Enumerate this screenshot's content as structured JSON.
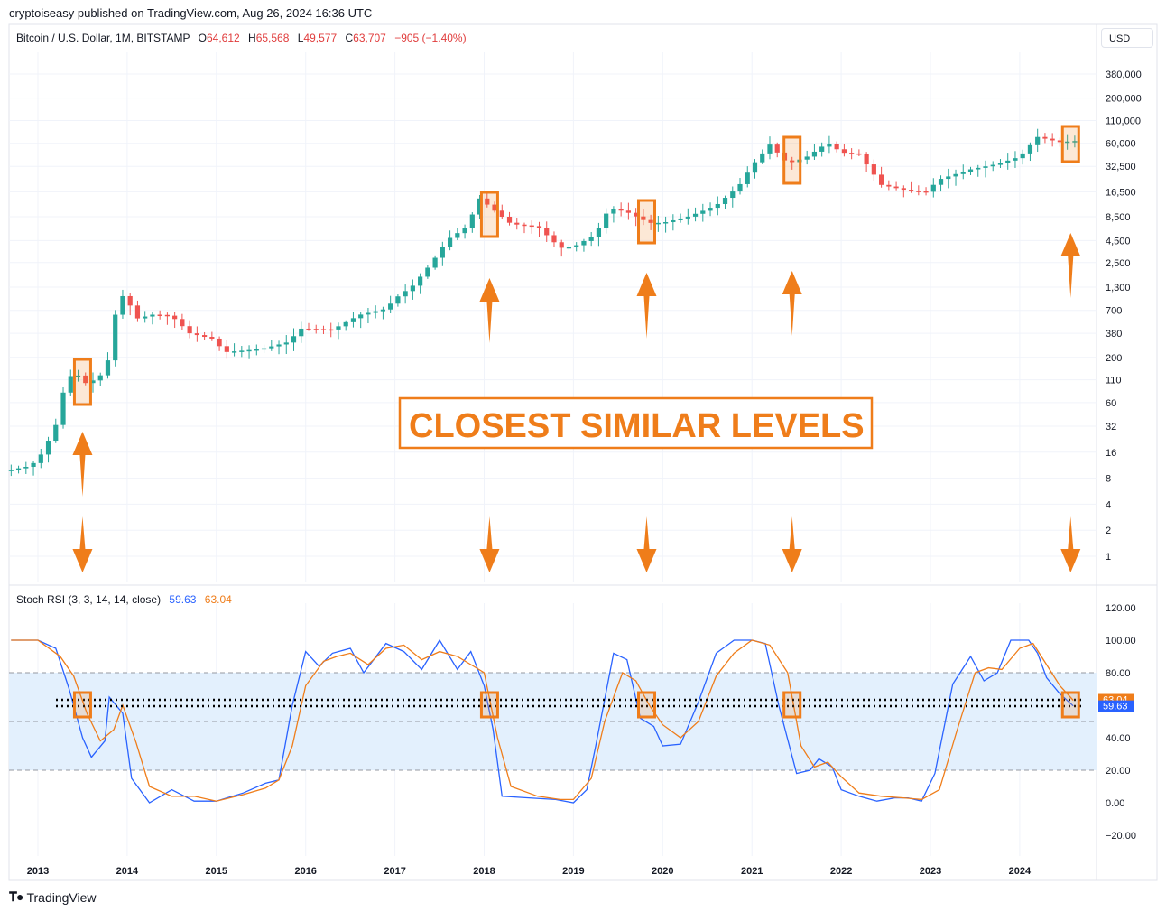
{
  "header": {
    "published": "cryptoiseasy published on TradingView.com, Aug 26, 2024 16:36 UTC",
    "symbol": "Bitcoin / U.S. Dollar, 1M, BITSTAMP",
    "open_label": "O",
    "open": "64,612",
    "high_label": "H",
    "high": "65,568",
    "low_label": "L",
    "low": "49,577",
    "close_label": "C",
    "close": "63,707",
    "change": "−905 (−1.40%)",
    "currency": "USD"
  },
  "annotation": {
    "text": "CLOSEST SIMILAR LEVELS"
  },
  "rsi_legend": {
    "name": "Stoch RSI (3, 3, 14, 14, close)",
    "k": "59.63",
    "d": "63.04"
  },
  "footer": {
    "brand": "TradingView"
  },
  "colors": {
    "up": "#26a69a",
    "down": "#ef5350",
    "k_line": "#2962ff",
    "d_line": "#ef7d1a",
    "annotation": "#ef7d1a",
    "band": "#e3f0fd"
  },
  "chart_data": [
    {
      "type": "candlestick",
      "title": "Bitcoin / U.S. Dollar, 1M, BITSTAMP",
      "y_scale": "log",
      "y_ticks": [
        "1",
        "2",
        "4",
        "8",
        "16",
        "32",
        "60",
        "110",
        "200",
        "380",
        "700",
        "1,300",
        "2,500",
        "4,500",
        "8,500",
        "16,500",
        "32,500",
        "60,000",
        "110,000",
        "200,000",
        "380,000"
      ],
      "x_ticks": [
        "2013",
        "2014",
        "2015",
        "2016",
        "2017",
        "2018",
        "2019",
        "2020",
        "2021",
        "2022",
        "2023",
        "2024"
      ],
      "anchors": [
        {
          "date": "2012.7",
          "price": 10
        },
        {
          "date": "2012.9",
          "price": 11
        },
        {
          "date": "2013.0",
          "price": 13
        },
        {
          "date": "2013.1",
          "price": 20
        },
        {
          "date": "2013.2",
          "price": 33
        },
        {
          "date": "2013.3",
          "price": 93
        },
        {
          "date": "2013.4",
          "price": 139
        },
        {
          "date": "2013.55",
          "price": 97
        },
        {
          "date": "2013.7",
          "price": 124
        },
        {
          "date": "2013.8",
          "price": 200
        },
        {
          "date": "2013.9",
          "price": 1100
        },
        {
          "date": "2014.0",
          "price": 950
        },
        {
          "date": "2014.1",
          "price": 560
        },
        {
          "date": "2014.3",
          "price": 630
        },
        {
          "date": "2014.5",
          "price": 600
        },
        {
          "date": "2014.7",
          "price": 380
        },
        {
          "date": "2014.95",
          "price": 330
        },
        {
          "date": "2015.1",
          "price": 230
        },
        {
          "date": "2015.5",
          "price": 250
        },
        {
          "date": "2015.8",
          "price": 300
        },
        {
          "date": "2015.95",
          "price": 430
        },
        {
          "date": "2016.3",
          "price": 420
        },
        {
          "date": "2016.6",
          "price": 620
        },
        {
          "date": "2016.9",
          "price": 730
        },
        {
          "date": "2017.0",
          "price": 960
        },
        {
          "date": "2017.2",
          "price": 1350
        },
        {
          "date": "2017.4",
          "price": 2400
        },
        {
          "date": "2017.6",
          "price": 4700
        },
        {
          "date": "2017.8",
          "price": 6400
        },
        {
          "date": "2017.95",
          "price": 13800
        },
        {
          "date": "2018.1",
          "price": 10300
        },
        {
          "date": "2018.3",
          "price": 7000
        },
        {
          "date": "2018.6",
          "price": 6500
        },
        {
          "date": "2018.85",
          "price": 3700
        },
        {
          "date": "2019.0",
          "price": 3800
        },
        {
          "date": "2019.25",
          "price": 5300
        },
        {
          "date": "2019.4",
          "price": 10800
        },
        {
          "date": "2019.6",
          "price": 9600
        },
        {
          "date": "2019.85",
          "price": 7200
        },
        {
          "date": "2020.0",
          "price": 7200
        },
        {
          "date": "2020.3",
          "price": 8600
        },
        {
          "date": "2020.6",
          "price": 11500
        },
        {
          "date": "2020.85",
          "price": 19000
        },
        {
          "date": "2021.0",
          "price": 33000
        },
        {
          "date": "2021.2",
          "price": 58000
        },
        {
          "date": "2021.4",
          "price": 35000
        },
        {
          "date": "2021.6",
          "price": 41000
        },
        {
          "date": "2021.85",
          "price": 61000
        },
        {
          "date": "2022.0",
          "price": 47000
        },
        {
          "date": "2022.2",
          "price": 45000
        },
        {
          "date": "2022.45",
          "price": 19800
        },
        {
          "date": "2022.75",
          "price": 17000
        },
        {
          "date": "2022.95",
          "price": 16500
        },
        {
          "date": "2023.1",
          "price": 23000
        },
        {
          "date": "2023.45",
          "price": 30000
        },
        {
          "date": "2023.75",
          "price": 34600
        },
        {
          "date": "2024.0",
          "price": 42000
        },
        {
          "date": "2024.2",
          "price": 71000
        },
        {
          "date": "2024.45",
          "price": 62000
        },
        {
          "date": "2024.6",
          "price": 63707
        }
      ]
    },
    {
      "type": "line",
      "title": "Stoch RSI (3, 3, 14, 14, close)",
      "ylim": [
        -20,
        120
      ],
      "y_ticks": [
        "120.00",
        "100.00",
        "80.00",
        "40.00",
        "20.00",
        "0.00",
        "−20.00"
      ],
      "band": [
        20,
        80
      ],
      "midline": 50,
      "series": [
        {
          "name": "K",
          "points": [
            [
              2012.7,
              100
            ],
            [
              2013.0,
              100
            ],
            [
              2013.2,
              95
            ],
            [
              2013.35,
              70
            ],
            [
              2013.5,
              40
            ],
            [
              2013.6,
              28
            ],
            [
              2013.75,
              38
            ],
            [
              2013.8,
              65
            ],
            [
              2013.95,
              55
            ],
            [
              2014.05,
              15
            ],
            [
              2014.25,
              0
            ],
            [
              2014.5,
              8
            ],
            [
              2014.75,
              1
            ],
            [
              2015.0,
              1
            ],
            [
              2015.3,
              6
            ],
            [
              2015.55,
              12
            ],
            [
              2015.7,
              14
            ],
            [
              2015.85,
              60
            ],
            [
              2016.0,
              93
            ],
            [
              2016.15,
              84
            ],
            [
              2016.3,
              92
            ],
            [
              2016.5,
              95
            ],
            [
              2016.65,
              80
            ],
            [
              2016.9,
              98
            ],
            [
              2017.1,
              93
            ],
            [
              2017.3,
              82
            ],
            [
              2017.5,
              100
            ],
            [
              2017.7,
              82
            ],
            [
              2017.85,
              93
            ],
            [
              2018.0,
              72
            ],
            [
              2018.1,
              45
            ],
            [
              2018.2,
              4
            ],
            [
              2018.5,
              3
            ],
            [
              2018.8,
              2
            ],
            [
              2019.0,
              0
            ],
            [
              2019.15,
              8
            ],
            [
              2019.25,
              35
            ],
            [
              2019.45,
              92
            ],
            [
              2019.6,
              88
            ],
            [
              2019.75,
              52
            ],
            [
              2019.9,
              47
            ],
            [
              2020.0,
              35
            ],
            [
              2020.2,
              36
            ],
            [
              2020.4,
              62
            ],
            [
              2020.6,
              92
            ],
            [
              2020.8,
              100
            ],
            [
              2021.0,
              100
            ],
            [
              2021.15,
              98
            ],
            [
              2021.3,
              60
            ],
            [
              2021.5,
              18
            ],
            [
              2021.65,
              20
            ],
            [
              2021.75,
              27
            ],
            [
              2021.9,
              22
            ],
            [
              2022.0,
              8
            ],
            [
              2022.2,
              4
            ],
            [
              2022.4,
              1
            ],
            [
              2022.6,
              3
            ],
            [
              2022.75,
              3
            ],
            [
              2022.9,
              1
            ],
            [
              2023.05,
              18
            ],
            [
              2023.25,
              73
            ],
            [
              2023.45,
              90
            ],
            [
              2023.6,
              75
            ],
            [
              2023.75,
              80
            ],
            [
              2023.9,
              100
            ],
            [
              2024.1,
              100
            ],
            [
              2024.2,
              92
            ],
            [
              2024.3,
              77
            ],
            [
              2024.45,
              67
            ],
            [
              2024.6,
              59.63
            ]
          ]
        },
        {
          "name": "D",
          "points": [
            [
              2012.7,
              100
            ],
            [
              2013.0,
              100
            ],
            [
              2013.25,
              90
            ],
            [
              2013.4,
              78
            ],
            [
              2013.55,
              55
            ],
            [
              2013.7,
              38
            ],
            [
              2013.85,
              45
            ],
            [
              2013.95,
              60
            ],
            [
              2014.1,
              37
            ],
            [
              2014.25,
              10
            ],
            [
              2014.5,
              4
            ],
            [
              2014.75,
              4
            ],
            [
              2015.0,
              1
            ],
            [
              2015.3,
              5
            ],
            [
              2015.55,
              9
            ],
            [
              2015.7,
              14
            ],
            [
              2015.85,
              35
            ],
            [
              2016.0,
              72
            ],
            [
              2016.2,
              87
            ],
            [
              2016.35,
              90
            ],
            [
              2016.5,
              92
            ],
            [
              2016.7,
              85
            ],
            [
              2016.9,
              95
            ],
            [
              2017.1,
              97
            ],
            [
              2017.3,
              88
            ],
            [
              2017.5,
              93
            ],
            [
              2017.7,
              90
            ],
            [
              2017.85,
              85
            ],
            [
              2018.0,
              80
            ],
            [
              2018.15,
              40
            ],
            [
              2018.3,
              10
            ],
            [
              2018.6,
              4
            ],
            [
              2018.85,
              2
            ],
            [
              2019.0,
              2
            ],
            [
              2019.2,
              15
            ],
            [
              2019.35,
              50
            ],
            [
              2019.55,
              80
            ],
            [
              2019.7,
              75
            ],
            [
              2019.85,
              60
            ],
            [
              2020.0,
              48
            ],
            [
              2020.2,
              40
            ],
            [
              2020.4,
              50
            ],
            [
              2020.6,
              78
            ],
            [
              2020.8,
              92
            ],
            [
              2021.0,
              100
            ],
            [
              2021.2,
              97
            ],
            [
              2021.4,
              80
            ],
            [
              2021.55,
              35
            ],
            [
              2021.7,
              22
            ],
            [
              2021.85,
              25
            ],
            [
              2022.0,
              16
            ],
            [
              2022.2,
              6
            ],
            [
              2022.45,
              4
            ],
            [
              2022.7,
              3
            ],
            [
              2022.9,
              2
            ],
            [
              2023.1,
              8
            ],
            [
              2023.3,
              45
            ],
            [
              2023.5,
              80
            ],
            [
              2023.65,
              83
            ],
            [
              2023.8,
              82
            ],
            [
              2024.0,
              95
            ],
            [
              2024.15,
              98
            ],
            [
              2024.3,
              85
            ],
            [
              2024.45,
              72
            ],
            [
              2024.6,
              63.04
            ]
          ]
        }
      ]
    }
  ]
}
